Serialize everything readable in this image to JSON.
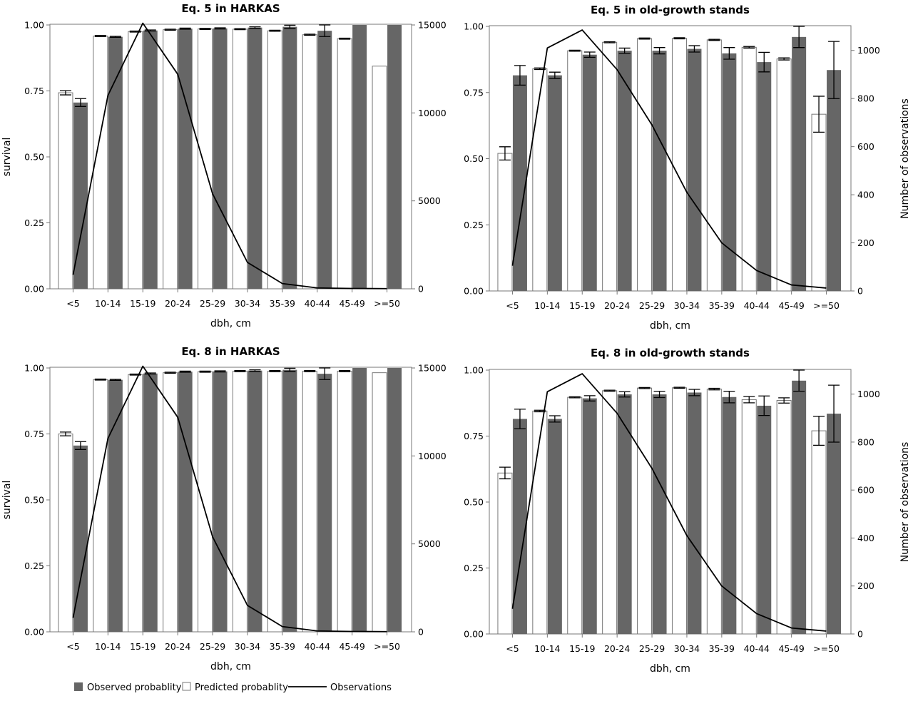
{
  "colors": {
    "observed": "#666666",
    "predicted": "#ffffff",
    "line": "#000000",
    "frame": "#777777"
  },
  "legend": {
    "observed": "Observed probablity",
    "predicted": "Predicted probablity",
    "line": "Observations"
  },
  "chart_data": [
    {
      "type": "bar",
      "title": "Eq. 5 in HARKAS",
      "xlabel": "dbh, cm",
      "ylabel": "survival",
      "y2label": "",
      "categories": [
        "<5",
        "10-14",
        "15-19",
        "20-24",
        "25-29",
        "30-34",
        "35-39",
        "40-44",
        "45-49",
        ">=50"
      ],
      "ylim": [
        0,
        1.0
      ],
      "yticks": [
        "0.00",
        "0.25",
        "0.50",
        "0.75",
        "1.00"
      ],
      "y2lim": [
        0,
        15000
      ],
      "y2ticks": [
        "0",
        "5000",
        "10000",
        "15000"
      ],
      "series": [
        {
          "name": "Predicted probablity",
          "values": [
            0.743,
            0.958,
            0.975,
            0.982,
            0.985,
            0.984,
            0.978,
            0.963,
            0.948,
            0.844
          ],
          "err": [
            0.008,
            0.002,
            0.002,
            0.002,
            0.002,
            0.002,
            0.002,
            0.002,
            0.002,
            0
          ]
        },
        {
          "name": "Observed probablity",
          "values": [
            0.706,
            0.955,
            0.979,
            0.986,
            0.987,
            0.99,
            0.993,
            0.978,
            1.0,
            1.0
          ],
          "err": [
            0.015,
            0.002,
            0.002,
            0.002,
            0.002,
            0.003,
            0.006,
            0.022,
            0,
            0
          ]
        },
        {
          "name": "Observations",
          "axis": "right",
          "values": [
            800,
            11000,
            15100,
            12200,
            5400,
            1500,
            300,
            50,
            20,
            10
          ]
        }
      ]
    },
    {
      "type": "bar",
      "title": "Eq. 5 in old-growth stands",
      "xlabel": "dbh, cm",
      "ylabel": "",
      "y2label": "Number of observations",
      "categories": [
        "<5",
        "10-14",
        "15-19",
        "20-24",
        "25-29",
        "30-34",
        "35-39",
        "40-44",
        "45-49",
        ">=50"
      ],
      "ylim": [
        0,
        1.0
      ],
      "yticks": [
        "0.00",
        "0.25",
        "0.50",
        "0.75",
        "1.00"
      ],
      "y2lim": [
        0,
        1100
      ],
      "y2ticks": [
        "0",
        "200",
        "400",
        "600",
        "800",
        "1000"
      ],
      "series": [
        {
          "name": "Predicted probablity",
          "values": [
            0.52,
            0.84,
            0.908,
            0.94,
            0.954,
            0.955,
            0.949,
            0.921,
            0.877,
            0.668
          ],
          "err": [
            0.025,
            0.003,
            0.002,
            0.002,
            0.002,
            0.002,
            0.002,
            0.003,
            0.004,
            0.068
          ]
        },
        {
          "name": "Observed probablity",
          "values": [
            0.815,
            0.815,
            0.893,
            0.908,
            0.908,
            0.915,
            0.898,
            0.865,
            0.96,
            0.835
          ],
          "err": [
            0.037,
            0.012,
            0.01,
            0.01,
            0.012,
            0.012,
            0.022,
            0.037,
            0.04,
            0.108
          ]
        },
        {
          "name": "Observations",
          "axis": "right",
          "values": [
            105,
            1010,
            1085,
            920,
            690,
            410,
            200,
            85,
            25,
            12
          ]
        }
      ]
    },
    {
      "type": "bar",
      "title": "Eq. 8 in HARKAS",
      "xlabel": "dbh, cm",
      "ylabel": "survival",
      "y2label": "",
      "categories": [
        "<5",
        "10-14",
        "15-19",
        "20-24",
        "25-29",
        "30-34",
        "35-39",
        "40-44",
        "45-49",
        ">=50"
      ],
      "ylim": [
        0,
        1.0
      ],
      "yticks": [
        "0.00",
        "0.25",
        "0.50",
        "0.75",
        "1.00"
      ],
      "y2lim": [
        0,
        15000
      ],
      "y2ticks": [
        "0",
        "5000",
        "10000",
        "15000"
      ],
      "series": [
        {
          "name": "Predicted probablity",
          "values": [
            0.75,
            0.956,
            0.975,
            0.982,
            0.986,
            0.988,
            0.988,
            0.988,
            0.988,
            0.982
          ],
          "err": [
            0.007,
            0.002,
            0.002,
            0.002,
            0.002,
            0.002,
            0.002,
            0.002,
            0.002,
            0
          ]
        },
        {
          "name": "Observed probablity",
          "values": [
            0.706,
            0.955,
            0.979,
            0.986,
            0.987,
            0.99,
            0.993,
            0.978,
            1.0,
            1.0
          ],
          "err": [
            0.015,
            0.002,
            0.002,
            0.002,
            0.002,
            0.003,
            0.006,
            0.022,
            0,
            0
          ]
        },
        {
          "name": "Observations",
          "axis": "right",
          "values": [
            800,
            11000,
            15100,
            12200,
            5400,
            1500,
            300,
            50,
            20,
            10
          ]
        }
      ]
    },
    {
      "type": "bar",
      "title": "Eq. 8 in old-growth stands",
      "xlabel": "dbh, cm",
      "ylabel": "",
      "y2label": "Number of observations",
      "categories": [
        "<5",
        "10-14",
        "15-19",
        "20-24",
        "25-29",
        "30-34",
        "35-39",
        "40-44",
        "45-49",
        ">=50"
      ],
      "ylim": [
        0,
        1.0
      ],
      "yticks": [
        "0.00",
        "0.25",
        "0.50",
        "0.75",
        "1.00"
      ],
      "y2lim": [
        0,
        1100
      ],
      "y2ticks": [
        "0",
        "200",
        "400",
        "600",
        "800",
        "1000"
      ],
      "series": [
        {
          "name": "Predicted probablity",
          "values": [
            0.61,
            0.845,
            0.897,
            0.922,
            0.932,
            0.933,
            0.928,
            0.888,
            0.885,
            0.77
          ],
          "err": [
            0.022,
            0.003,
            0.002,
            0.002,
            0.002,
            0.002,
            0.003,
            0.012,
            0.01,
            0.055
          ]
        },
        {
          "name": "Observed probablity",
          "values": [
            0.815,
            0.815,
            0.893,
            0.908,
            0.908,
            0.915,
            0.898,
            0.865,
            0.96,
            0.835
          ],
          "err": [
            0.037,
            0.012,
            0.01,
            0.01,
            0.012,
            0.012,
            0.022,
            0.037,
            0.04,
            0.108
          ]
        },
        {
          "name": "Observations",
          "axis": "right",
          "values": [
            105,
            1010,
            1085,
            920,
            690,
            410,
            200,
            85,
            25,
            12
          ]
        }
      ]
    }
  ]
}
